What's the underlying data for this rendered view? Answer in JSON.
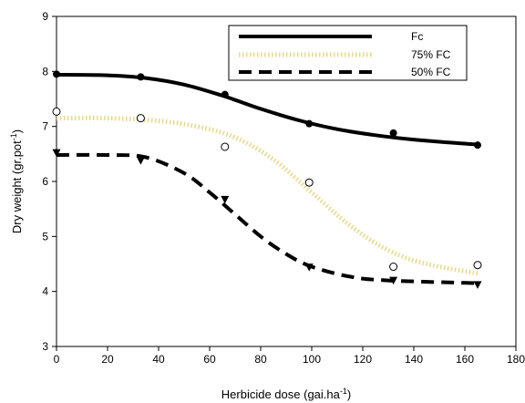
{
  "chart_data": {
    "type": "scatter",
    "xlabel": "Herbicide dose (gai.ha",
    "xlabel_sup": "-1",
    "xlabel_end": ")",
    "ylabel": "Dry weight (gr.pot",
    "ylabel_sup": "-1",
    "ylabel_end": ")",
    "xlim": [
      0,
      180
    ],
    "ylim": [
      3,
      9
    ],
    "xticks": [
      "0",
      "20",
      "40",
      "60",
      "80",
      "100",
      "120",
      "140",
      "160",
      "180"
    ],
    "yticks": [
      "3",
      "4",
      "5",
      "6",
      "7",
      "8",
      "9"
    ],
    "grid": false,
    "legend_position": "top-right",
    "series": [
      {
        "name": "Fc",
        "marker": "filled-circle",
        "line_style": "solid",
        "color": "#000000",
        "points": [
          {
            "x": 0,
            "y": 7.95
          },
          {
            "x": 33,
            "y": 7.9
          },
          {
            "x": 66,
            "y": 7.58
          },
          {
            "x": 99,
            "y": 7.05
          },
          {
            "x": 132,
            "y": 6.88
          },
          {
            "x": 165,
            "y": 6.66
          }
        ],
        "fit": [
          {
            "x": 0,
            "y": 7.94
          },
          {
            "x": 20,
            "y": 7.93
          },
          {
            "x": 35,
            "y": 7.88
          },
          {
            "x": 50,
            "y": 7.76
          },
          {
            "x": 65,
            "y": 7.56
          },
          {
            "x": 80,
            "y": 7.32
          },
          {
            "x": 95,
            "y": 7.11
          },
          {
            "x": 110,
            "y": 6.95
          },
          {
            "x": 125,
            "y": 6.84
          },
          {
            "x": 140,
            "y": 6.76
          },
          {
            "x": 165,
            "y": 6.67
          }
        ]
      },
      {
        "name": "75% FC",
        "marker": "open-circle",
        "line_style": "dotted",
        "color": "#e6d98a",
        "points": [
          {
            "x": 0,
            "y": 7.27
          },
          {
            "x": 33,
            "y": 7.15
          },
          {
            "x": 66,
            "y": 6.63
          },
          {
            "x": 99,
            "y": 5.98
          },
          {
            "x": 132,
            "y": 4.45
          },
          {
            "x": 165,
            "y": 4.48
          }
        ],
        "fit": [
          {
            "x": 0,
            "y": 7.15
          },
          {
            "x": 20,
            "y": 7.15
          },
          {
            "x": 40,
            "y": 7.1
          },
          {
            "x": 55,
            "y": 7.0
          },
          {
            "x": 70,
            "y": 6.8
          },
          {
            "x": 85,
            "y": 6.4
          },
          {
            "x": 100,
            "y": 5.8
          },
          {
            "x": 115,
            "y": 5.2
          },
          {
            "x": 130,
            "y": 4.75
          },
          {
            "x": 145,
            "y": 4.5
          },
          {
            "x": 165,
            "y": 4.33
          }
        ]
      },
      {
        "name": "50% FC",
        "marker": "filled-triangle-down",
        "line_style": "dashed",
        "color": "#000000",
        "points": [
          {
            "x": 0,
            "y": 6.52
          },
          {
            "x": 33,
            "y": 6.38
          },
          {
            "x": 66,
            "y": 5.67
          },
          {
            "x": 99,
            "y": 4.44
          },
          {
            "x": 132,
            "y": 4.2
          },
          {
            "x": 165,
            "y": 4.12
          }
        ],
        "fit": [
          {
            "x": 0,
            "y": 6.48
          },
          {
            "x": 20,
            "y": 6.48
          },
          {
            "x": 35,
            "y": 6.44
          },
          {
            "x": 50,
            "y": 6.15
          },
          {
            "x": 60,
            "y": 5.8
          },
          {
            "x": 70,
            "y": 5.4
          },
          {
            "x": 80,
            "y": 5.0
          },
          {
            "x": 90,
            "y": 4.68
          },
          {
            "x": 100,
            "y": 4.45
          },
          {
            "x": 115,
            "y": 4.27
          },
          {
            "x": 130,
            "y": 4.2
          },
          {
            "x": 165,
            "y": 4.15
          }
        ]
      }
    ]
  }
}
